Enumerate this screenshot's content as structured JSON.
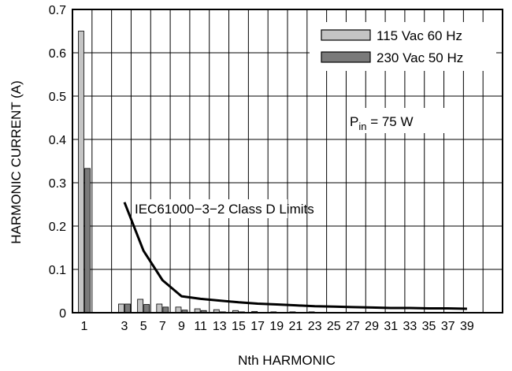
{
  "chart_data": {
    "type": "bar",
    "title": "",
    "xlabel": "Nth HARMONIC",
    "ylabel": "HARMONIC CURRENT (A)",
    "ylim": [
      0,
      0.7
    ],
    "yticks": [
      "0",
      "0.1",
      "0.2",
      "0.3",
      "0.4",
      "0.5",
      "0.6",
      "0.7"
    ],
    "xticks": [
      "1",
      "3",
      "5",
      "7",
      "9",
      "11",
      "13",
      "15",
      "17",
      "19",
      "21",
      "23",
      "25",
      "27",
      "29",
      "31",
      "33",
      "35",
      "37",
      "39"
    ],
    "grid": true,
    "legend_position": "top-right",
    "categories": [
      1,
      3,
      5,
      7,
      9,
      11,
      13,
      15,
      17,
      19,
      21,
      23,
      25,
      27,
      29,
      31,
      33,
      35,
      37,
      39
    ],
    "series": [
      {
        "name": "115 Vac 60 Hz",
        "color": "#c4c4c4",
        "values": [
          0.65,
          0.02,
          0.031,
          0.02,
          0.013,
          0.009,
          0.007,
          0.005,
          0.003,
          0.002,
          0.002,
          0.002,
          0.001,
          0.001,
          0.001,
          0.001,
          0.001,
          0.001,
          0.001,
          0.001
        ]
      },
      {
        "name": "230 Vac 50 Hz",
        "color": "#7a7a7a",
        "values": [
          0.333,
          0.02,
          0.019,
          0.013,
          0.006,
          0.005,
          0.002,
          0.002,
          0.001,
          0.001,
          0.001,
          0.001,
          0.001,
          0.001,
          0.001,
          0.001,
          0.001,
          0.001,
          0.001,
          0.001
        ]
      }
    ],
    "limit_line": {
      "label": "IEC61000−3−2 Class D Limits",
      "x": [
        3,
        5,
        7,
        9,
        11,
        13,
        15,
        17,
        19,
        21,
        23,
        25,
        27,
        29,
        31,
        33,
        35,
        37,
        39
      ],
      "y": [
        0.255,
        0.143,
        0.075,
        0.038,
        0.032,
        0.028,
        0.024,
        0.021,
        0.019,
        0.017,
        0.015,
        0.014,
        0.013,
        0.012,
        0.011,
        0.011,
        0.01,
        0.01,
        0.009
      ]
    },
    "annotation": {
      "main": "P",
      "subscript": "in",
      "suffix": " = 75 W"
    }
  }
}
